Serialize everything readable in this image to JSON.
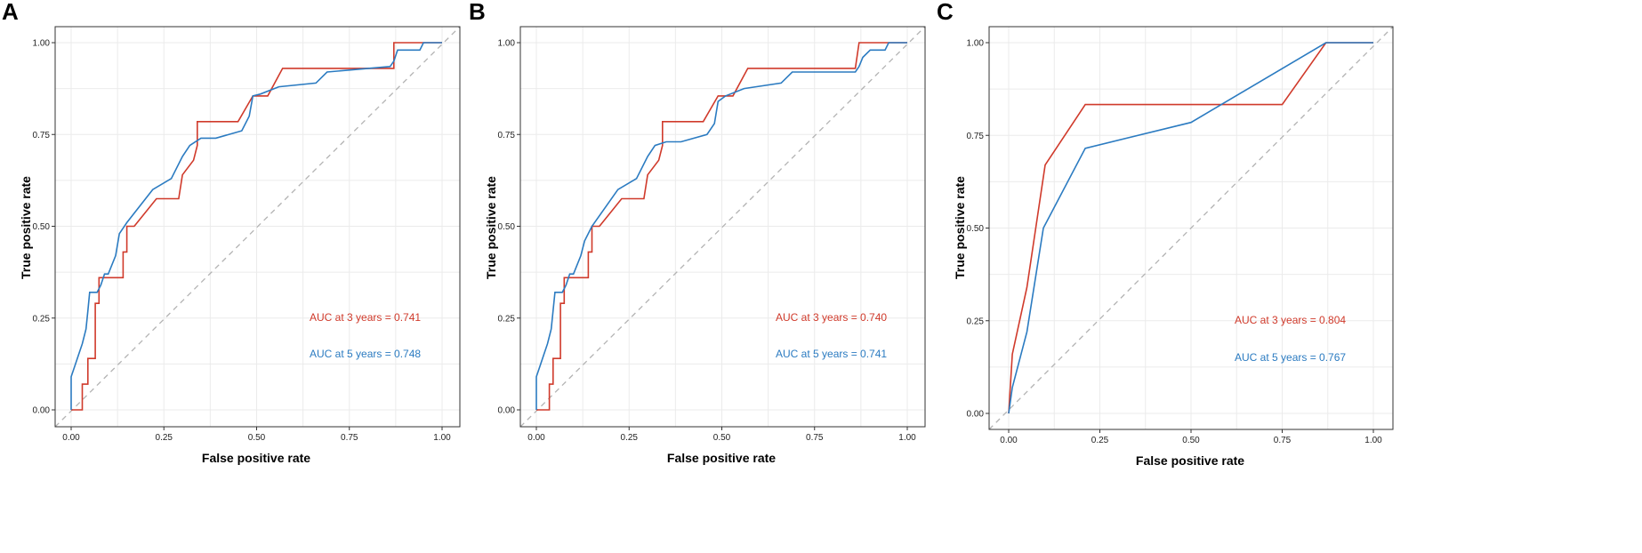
{
  "colors": {
    "red": "#d03a2b",
    "blue": "#2b7bc1",
    "diag": "#b3b3b3"
  },
  "chart_data": [
    {
      "type": "line",
      "panel": "A",
      "xlabel": "False positive rate",
      "ylabel": "True positive rate",
      "xlim": [
        0,
        1
      ],
      "ylim": [
        0,
        1
      ],
      "xticks": [
        "0.00",
        "0.25",
        "0.50",
        "0.75",
        "1.00"
      ],
      "yticks": [
        "0.00",
        "0.25",
        "0.50",
        "0.75",
        "1.00"
      ],
      "grid": true,
      "series": [
        {
          "name": "3 years",
          "color": "#d03a2b",
          "label": "AUC at 3 years = 0.741",
          "x": [
            0,
            0.03,
            0.03,
            0.045,
            0.045,
            0.065,
            0.065,
            0.075,
            0.075,
            0.14,
            0.14,
            0.15,
            0.15,
            0.17,
            0.23,
            0.26,
            0.29,
            0.3,
            0.3,
            0.33,
            0.34,
            0.34,
            0.45,
            0.49,
            0.53,
            0.57,
            0.87,
            0.87,
            0.93,
            1.0
          ],
          "y": [
            0,
            0,
            0.07,
            0.07,
            0.14,
            0.14,
            0.29,
            0.29,
            0.36,
            0.36,
            0.43,
            0.43,
            0.5,
            0.5,
            0.575,
            0.575,
            0.575,
            0.64,
            0.64,
            0.68,
            0.72,
            0.785,
            0.785,
            0.855,
            0.855,
            0.93,
            0.93,
            1.0,
            1.0,
            1.0
          ]
        },
        {
          "name": "5 years",
          "color": "#2b7bc1",
          "label": "AUC at 5 years = 0.748",
          "x": [
            0,
            0,
            0.01,
            0.02,
            0.03,
            0.04,
            0.045,
            0.05,
            0.055,
            0.07,
            0.08,
            0.09,
            0.1,
            0.12,
            0.13,
            0.15,
            0.22,
            0.27,
            0.3,
            0.32,
            0.35,
            0.39,
            0.46,
            0.48,
            0.49,
            0.51,
            0.56,
            0.66,
            0.69,
            0.86,
            0.87,
            0.88,
            0.9,
            0.94,
            0.95,
            1.0
          ],
          "y": [
            0,
            0.09,
            0.12,
            0.15,
            0.18,
            0.22,
            0.27,
            0.32,
            0.32,
            0.32,
            0.34,
            0.37,
            0.37,
            0.42,
            0.48,
            0.51,
            0.6,
            0.63,
            0.69,
            0.72,
            0.74,
            0.74,
            0.76,
            0.8,
            0.855,
            0.86,
            0.88,
            0.89,
            0.92,
            0.935,
            0.95,
            0.98,
            0.98,
            0.98,
            1.0,
            1.0
          ]
        }
      ]
    },
    {
      "type": "line",
      "panel": "B",
      "xlabel": "False positive rate",
      "ylabel": "True positive rate",
      "xlim": [
        0,
        1
      ],
      "ylim": [
        0,
        1
      ],
      "xticks": [
        "0.00",
        "0.25",
        "0.50",
        "0.75",
        "1.00"
      ],
      "yticks": [
        "0.00",
        "0.25",
        "0.50",
        "0.75",
        "1.00"
      ],
      "grid": true,
      "series": [
        {
          "name": "3 years",
          "color": "#d03a2b",
          "label": "AUC at 3 years = 0.740",
          "x": [
            0,
            0.035,
            0.035,
            0.045,
            0.045,
            0.065,
            0.065,
            0.075,
            0.075,
            0.14,
            0.14,
            0.15,
            0.15,
            0.17,
            0.23,
            0.26,
            0.29,
            0.3,
            0.3,
            0.33,
            0.34,
            0.34,
            0.45,
            0.49,
            0.53,
            0.57,
            0.86,
            0.87,
            0.93,
            1.0
          ],
          "y": [
            0,
            0,
            0.07,
            0.07,
            0.14,
            0.14,
            0.29,
            0.29,
            0.36,
            0.36,
            0.43,
            0.43,
            0.5,
            0.5,
            0.575,
            0.575,
            0.575,
            0.64,
            0.64,
            0.68,
            0.72,
            0.785,
            0.785,
            0.855,
            0.855,
            0.93,
            0.93,
            1.0,
            1.0,
            1.0
          ]
        },
        {
          "name": "5 years",
          "color": "#2b7bc1",
          "label": "AUC at 5 years = 0.741",
          "x": [
            0,
            0,
            0.01,
            0.02,
            0.03,
            0.04,
            0.045,
            0.05,
            0.055,
            0.07,
            0.08,
            0.09,
            0.1,
            0.12,
            0.13,
            0.15,
            0.22,
            0.27,
            0.3,
            0.32,
            0.35,
            0.39,
            0.46,
            0.48,
            0.49,
            0.51,
            0.56,
            0.66,
            0.69,
            0.86,
            0.87,
            0.88,
            0.9,
            0.94,
            0.95,
            1.0
          ],
          "y": [
            0,
            0.09,
            0.12,
            0.15,
            0.18,
            0.22,
            0.27,
            0.32,
            0.32,
            0.32,
            0.34,
            0.37,
            0.37,
            0.42,
            0.46,
            0.5,
            0.6,
            0.63,
            0.69,
            0.72,
            0.73,
            0.73,
            0.75,
            0.78,
            0.84,
            0.855,
            0.875,
            0.89,
            0.92,
            0.92,
            0.935,
            0.96,
            0.98,
            0.98,
            1.0,
            1.0
          ]
        }
      ]
    },
    {
      "type": "line",
      "panel": "C",
      "xlabel": "False positive rate",
      "ylabel": "True positive rate",
      "xlim": [
        0,
        1
      ],
      "ylim": [
        0,
        1
      ],
      "xticks": [
        "0.00",
        "0.25",
        "0.50",
        "0.75",
        "1.00"
      ],
      "yticks": [
        "0.00",
        "0.25",
        "0.50",
        "0.75",
        "1.00"
      ],
      "grid": true,
      "series": [
        {
          "name": "3 years",
          "color": "#d03a2b",
          "label": "AUC at 3 years = 0.804",
          "x": [
            0,
            0.01,
            0.03,
            0.05,
            0.1,
            0.21,
            0.75,
            0.87,
            1.0
          ],
          "y": [
            0,
            0.16,
            0.25,
            0.34,
            0.67,
            0.833,
            0.833,
            1.0,
            1.0
          ]
        },
        {
          "name": "5 years",
          "color": "#2b7bc1",
          "label": "AUC at 5 years = 0.767",
          "x": [
            0,
            0.01,
            0.05,
            0.095,
            0.21,
            0.5,
            0.87,
            1.0
          ],
          "y": [
            0,
            0.07,
            0.22,
            0.5,
            0.715,
            0.785,
            1.0,
            1.0
          ]
        }
      ]
    }
  ]
}
